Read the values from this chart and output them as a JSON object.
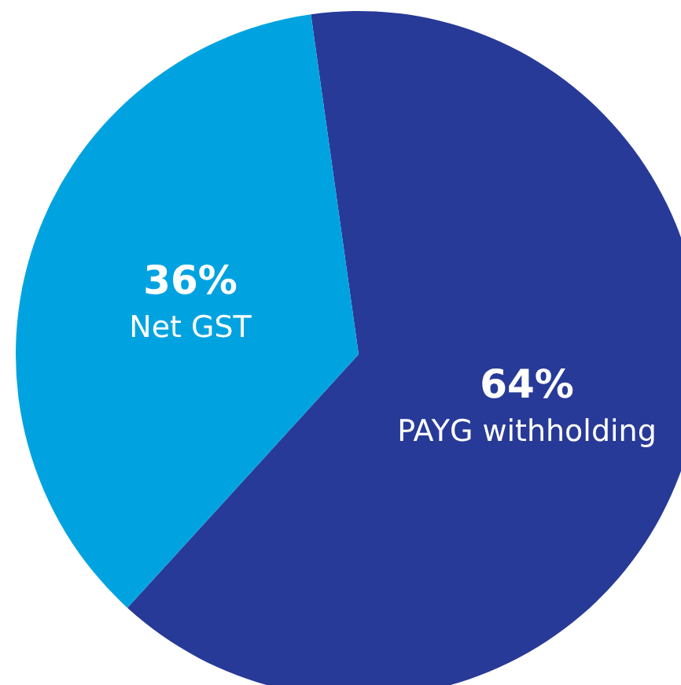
{
  "chart_data": {
    "type": "pie",
    "categories": [
      "PAYG withholding",
      "Net GST"
    ],
    "values": [
      64,
      36
    ],
    "value_labels": [
      "64%",
      "36%"
    ],
    "colors": [
      "#283a97",
      "#00a3e0"
    ],
    "legend": false
  }
}
